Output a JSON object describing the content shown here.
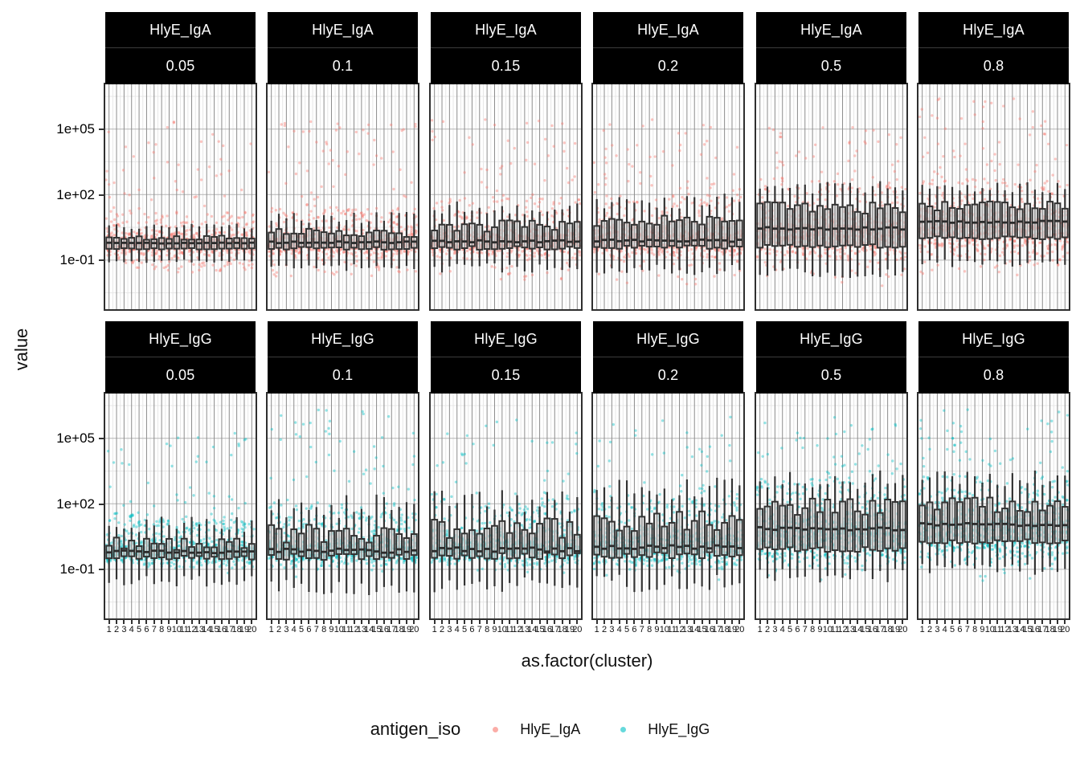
{
  "figure": {
    "y_axis_label": "value",
    "x_axis_label": "as.factor(cluster)",
    "y_ticks": [
      "1e+05",
      "1e+02",
      "1e-01"
    ]
  },
  "legend": {
    "title": "antigen_iso",
    "items": [
      {
        "label": "HlyE_IgA",
        "color": "#F8766D"
      },
      {
        "label": "HlyE_IgG",
        "color": "#00BFC4"
      }
    ]
  },
  "chart_data": {
    "type": "boxplot",
    "subtype": "faceted-boxplot-with-jitter",
    "facet_rows": [
      "HlyE_IgA",
      "HlyE_IgG"
    ],
    "facet_cols": [
      "0.05",
      "0.1",
      "0.15",
      "0.2",
      "0.5",
      "0.8"
    ],
    "x_categories": [
      "1",
      "2",
      "3",
      "4",
      "5",
      "6",
      "7",
      "8",
      "9",
      "10",
      "11",
      "12",
      "13",
      "14",
      "15",
      "16",
      "17",
      "18",
      "19",
      "20"
    ],
    "xlabel": "as.factor(cluster)",
    "ylabel": "value",
    "y_scale": "log10",
    "y_tick_labels": [
      "1e+05",
      "1e+02",
      "1e-01"
    ],
    "y_major_log": [
      5,
      2,
      -1
    ],
    "y_minor_log": [
      6.5,
      3.5,
      0.5,
      -2.5
    ],
    "y_range_log": [
      -3.25,
      7.05
    ],
    "grid": {
      "major_color": "#b4b4b4",
      "minor_color": "#e7e7e7",
      "vline_color": "#8c8c8c"
    },
    "box_style": {
      "stroke": "#333333",
      "fill": "rgba(255,255,255,0.55)",
      "median_color": "#2b2b2b"
    },
    "series": [
      {
        "name": "HlyE_IgA",
        "color": "#F8766D",
        "point_alpha": 0.42
      },
      {
        "name": "HlyE_IgG",
        "color": "#00BFC4",
        "point_alpha": 0.42
      }
    ],
    "seed": 42,
    "facets": [
      {
        "row": 0,
        "col": 0,
        "med": -0.22,
        "q1": -0.48,
        "q3": 0.02,
        "wlo": -1.05,
        "whi": 0.55,
        "var": 0.1,
        "band": -0.28,
        "bsd": 0.26,
        "mid": 0.16,
        "tail": 5.8,
        "n": 42
      },
      {
        "row": 0,
        "col": 1,
        "med": -0.18,
        "q1": -0.46,
        "q3": 0.28,
        "wlo": -1.35,
        "whi": 0.95,
        "var": 0.22,
        "band": -0.26,
        "bsd": 0.28,
        "mid": 0.17,
        "tail": 5.4,
        "n": 42
      },
      {
        "row": 0,
        "col": 2,
        "med": -0.14,
        "q1": -0.44,
        "q3": 0.55,
        "wlo": -1.35,
        "whi": 1.4,
        "var": 0.28,
        "band": -0.22,
        "bsd": 0.3,
        "mid": 0.18,
        "tail": 5.5,
        "n": 42
      },
      {
        "row": 0,
        "col": 3,
        "med": -0.1,
        "q1": -0.42,
        "q3": 0.8,
        "wlo": -1.45,
        "whi": 1.7,
        "var": 0.3,
        "band": -0.18,
        "bsd": 0.33,
        "mid": 0.18,
        "tail": 5.5,
        "n": 42
      },
      {
        "row": 0,
        "col": 4,
        "med": 0.45,
        "q1": -0.35,
        "q3": 1.4,
        "wlo": -1.6,
        "whi": 2.3,
        "var": 0.28,
        "band": 0.1,
        "bsd": 0.5,
        "mid": 0.18,
        "tail": 5.4,
        "n": 44
      },
      {
        "row": 0,
        "col": 5,
        "med": 0.75,
        "q1": 0.02,
        "q3": 1.48,
        "wlo": -1.15,
        "whi": 2.3,
        "var": 0.22,
        "band": 0.32,
        "bsd": 0.55,
        "mid": 0.18,
        "tail": 6.4,
        "n": 44
      },
      {
        "row": 1,
        "col": 0,
        "med": -0.2,
        "q1": -0.46,
        "q3": 0.15,
        "wlo": -1.55,
        "whi": 1.05,
        "var": 0.3,
        "band": -0.25,
        "bsd": 0.28,
        "mid": 0.24,
        "tail": 5.5,
        "n": 44
      },
      {
        "row": 1,
        "col": 1,
        "med": -0.15,
        "q1": -0.44,
        "q3": 0.55,
        "wlo": -1.85,
        "whi": 1.85,
        "var": 0.5,
        "band": -0.22,
        "bsd": 0.3,
        "mid": 0.25,
        "tail": 6.3,
        "n": 44
      },
      {
        "row": 1,
        "col": 2,
        "med": -0.1,
        "q1": -0.4,
        "q3": 0.9,
        "wlo": -1.65,
        "whi": 2.2,
        "var": 0.5,
        "band": -0.18,
        "bsd": 0.33,
        "mid": 0.26,
        "tail": 5.9,
        "n": 44
      },
      {
        "row": 1,
        "col": 3,
        "med": 0.0,
        "q1": -0.36,
        "q3": 1.2,
        "wlo": -1.65,
        "whi": 2.6,
        "var": 0.5,
        "band": -0.12,
        "bsd": 0.4,
        "mid": 0.26,
        "tail": 6.0,
        "n": 44
      },
      {
        "row": 1,
        "col": 4,
        "med": 0.85,
        "q1": -0.1,
        "q3": 1.85,
        "wlo": -1.3,
        "whi": 3.05,
        "var": 0.4,
        "band": 0.3,
        "bsd": 0.6,
        "mid": 0.24,
        "tail": 6.1,
        "n": 44
      },
      {
        "row": 1,
        "col": 5,
        "med": 1.05,
        "q1": 0.28,
        "q3": 1.95,
        "wlo": -1.0,
        "whi": 3.15,
        "var": 0.35,
        "band": 0.5,
        "bsd": 0.6,
        "mid": 0.24,
        "tail": 6.4,
        "n": 44
      }
    ]
  }
}
